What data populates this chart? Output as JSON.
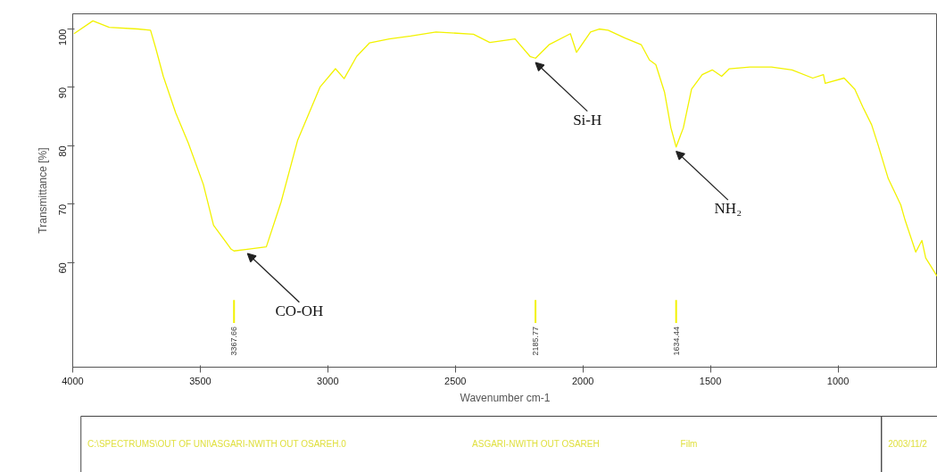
{
  "chart_data": {
    "type": "line",
    "xlabel": "Wavenumber cm-1",
    "ylabel": "Transmittance [%]",
    "xlim": [
      4000,
      610
    ],
    "ylim": [
      42.1,
      102.6
    ],
    "xticks": [
      4000,
      3500,
      3000,
      2500,
      2000,
      1500,
      1000
    ],
    "yticks": [
      60,
      70,
      80,
      90,
      100
    ],
    "marker": "none",
    "line_style": "solid",
    "series": [
      {
        "color": "#f2f200",
        "x": [
          3995,
          3921,
          3857,
          3744,
          3695,
          3675,
          3645,
          3596,
          3547,
          3488,
          3448,
          3379,
          3367.66,
          3315,
          3241,
          3183,
          3118,
          3030,
          2970,
          2936,
          2887,
          2837,
          2759,
          2675,
          2576,
          2429,
          2365,
          2266,
          2207,
          2185.77,
          2133,
          2049,
          2025,
          1970,
          1936,
          1901,
          1837,
          1771,
          1739,
          1714,
          1680,
          1655,
          1634.44,
          1606,
          1574,
          1532,
          1493,
          1456,
          1426,
          1345,
          1261,
          1180,
          1099,
          1057,
          1050,
          976,
          934,
          902,
          868,
          843,
          803,
          754,
          737,
          695,
          671,
          656,
          633,
          612
        ],
        "values": [
          99.2,
          101.4,
          100.3,
          100,
          99.8,
          96.8,
          91.9,
          85.6,
          80.5,
          73.4,
          66.4,
          62.3,
          62,
          62.3,
          62.7,
          70.4,
          81,
          90.1,
          93.2,
          91.5,
          95.3,
          97.6,
          98.3,
          98.8,
          99.5,
          99.1,
          97.7,
          98.3,
          95.3,
          95,
          97.3,
          99.2,
          96,
          99.5,
          100,
          99.8,
          98.5,
          97.3,
          94.7,
          93.9,
          89.2,
          83.1,
          79.8,
          83.1,
          89.7,
          92.2,
          93,
          91.9,
          93.2,
          93.5,
          93.5,
          93,
          91.6,
          92.2,
          90.7,
          91.6,
          89.7,
          86.6,
          83.6,
          80.2,
          74.4,
          69.9,
          67.3,
          61.8,
          63.8,
          60.8,
          59.2,
          57.7
        ]
      }
    ],
    "ref_lines": [
      {
        "axis": "x",
        "value": 3367.66,
        "label": "3367.66",
        "color": "#f2f200"
      },
      {
        "axis": "x",
        "value": 2185.77,
        "label": "2185.77",
        "color": "#f2f200"
      },
      {
        "axis": "x",
        "value": 1634.44,
        "label": "1634.44",
        "color": "#f2f200"
      }
    ],
    "annotations": [
      {
        "text": "CO-OH",
        "x": 3315,
        "y": 62.3
      },
      {
        "text": "Si-H",
        "x": 2185.77,
        "y": 95
      },
      {
        "text": "NH₂",
        "x": 1634.44,
        "y": 79.8
      },
      "C:\\SPECTRUMS\\OUT OF UNI\\ASGARI-NWITH OUT OSAREH.0",
      "ASGARI-NWITH OUT OSAREH",
      "Film",
      "2003/11/2"
    ]
  }
}
